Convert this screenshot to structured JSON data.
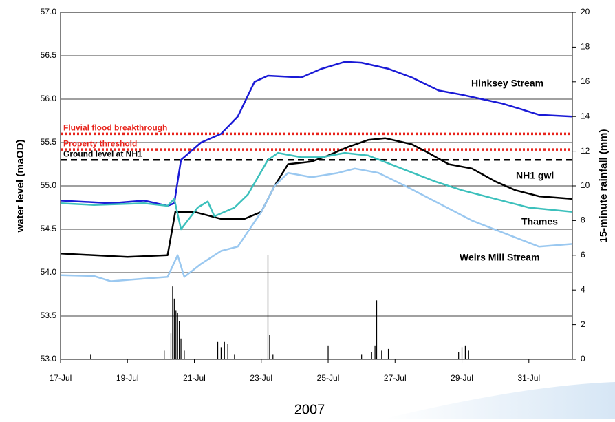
{
  "chart_data": {
    "type": "line",
    "ylabel": "water level (maOD)",
    "y2label": "15-minute rainfall (mm)",
    "xlabel": "2007",
    "xlim": [
      17,
      32.3
    ],
    "xticks": [
      {
        "value": 17,
        "label": "17-Jul"
      },
      {
        "value": 19,
        "label": "19-Jul"
      },
      {
        "value": 21,
        "label": "21-Jul"
      },
      {
        "value": 23,
        "label": "23-Jul"
      },
      {
        "value": 25,
        "label": "25-Jul"
      },
      {
        "value": 27,
        "label": "27-Jul"
      },
      {
        "value": 29,
        "label": "29-Jul"
      },
      {
        "value": 31,
        "label": "31-Jul"
      }
    ],
    "ylim": [
      53,
      57
    ],
    "yticks": [
      {
        "value": 53,
        "label": "53.0"
      },
      {
        "value": 53.5,
        "label": "53.5"
      },
      {
        "value": 54,
        "label": "54.0"
      },
      {
        "value": 54.5,
        "label": "54.5"
      },
      {
        "value": 55,
        "label": "55.0"
      },
      {
        "value": 55.5,
        "label": "55.5"
      },
      {
        "value": 56,
        "label": "56.0"
      },
      {
        "value": 56.5,
        "label": "56.5"
      },
      {
        "value": 57,
        "label": "57.0"
      }
    ],
    "y2lim": [
      0,
      20
    ],
    "y2ticks": [
      0,
      2,
      4,
      6,
      8,
      10,
      12,
      14,
      16,
      18,
      20
    ],
    "grid": true,
    "reference_lines": [
      {
        "label": "Fluvial flood breakthrough",
        "value": 55.6,
        "color": "#e8241c",
        "style": "dotted"
      },
      {
        "label": "Property threshold",
        "value": 55.42,
        "color": "#e8241c",
        "style": "dotted"
      },
      {
        "label": "Ground level at NH1",
        "value": 55.3,
        "color": "#000000",
        "style": "dashed"
      }
    ],
    "series": [
      {
        "name": "Hinksey Stream",
        "color": "#1a1ad6",
        "x": [
          17,
          18.5,
          19.5,
          20.2,
          20.4,
          20.6,
          21.2,
          21.8,
          22.3,
          22.8,
          23.2,
          24.2,
          24.8,
          25.5,
          26,
          26.8,
          27.5,
          28.3,
          29,
          29.6,
          30.2,
          30.8,
          31.3,
          32.3
        ],
        "values": [
          54.83,
          54.8,
          54.83,
          54.77,
          54.8,
          55.3,
          55.5,
          55.6,
          55.8,
          56.2,
          56.27,
          56.25,
          56.35,
          56.43,
          56.42,
          56.35,
          56.25,
          56.1,
          56.05,
          56,
          55.95,
          55.88,
          55.82,
          55.8
        ]
      },
      {
        "name": "NH1 gwl",
        "color": "#000000",
        "x": [
          17,
          18,
          19,
          20.2,
          20.43,
          21,
          21.8,
          22.5,
          23,
          23.4,
          23.8,
          24.5,
          25,
          25.6,
          26.2,
          26.7,
          27.5,
          28,
          28.6,
          29.3,
          30,
          30.6,
          31.3,
          32.3
        ],
        "values": [
          54.22,
          54.2,
          54.18,
          54.2,
          54.7,
          54.7,
          54.62,
          54.62,
          54.7,
          55,
          55.25,
          55.28,
          55.35,
          55.45,
          55.53,
          55.55,
          55.48,
          55.38,
          55.25,
          55.2,
          55.05,
          54.95,
          54.88,
          54.85
        ]
      },
      {
        "name": "Thames",
        "color": "#3cc0bc",
        "x": [
          17,
          18,
          19.5,
          20.2,
          20.4,
          20.6,
          21.1,
          21.4,
          21.6,
          22.2,
          22.6,
          23.2,
          23.5,
          24.2,
          24.8,
          25.5,
          26.2,
          27.2,
          28.2,
          29,
          30,
          31,
          32.3
        ],
        "values": [
          54.8,
          54.78,
          54.8,
          54.77,
          54.85,
          54.5,
          54.75,
          54.82,
          54.65,
          54.75,
          54.9,
          55.3,
          55.38,
          55.33,
          55.33,
          55.38,
          55.35,
          55.2,
          55.05,
          54.95,
          54.85,
          54.75,
          54.7
        ]
      },
      {
        "name": "Weirs Mill Stream",
        "color": "#9ac8f0",
        "x": [
          17,
          18,
          18.5,
          19.5,
          20.2,
          20.5,
          20.7,
          21.2,
          21.8,
          22.3,
          23,
          23.4,
          23.8,
          24.5,
          25.3,
          25.8,
          26.5,
          27.3,
          28.3,
          29.3,
          30.3,
          31.3,
          32.3
        ],
        "values": [
          53.97,
          53.96,
          53.9,
          53.93,
          53.95,
          54.2,
          53.95,
          54.1,
          54.25,
          54.3,
          54.7,
          55,
          55.15,
          55.1,
          55.15,
          55.2,
          55.15,
          55,
          54.8,
          54.6,
          54.45,
          54.3,
          54.33
        ]
      },
      {
        "name": "15-minute rainfall",
        "type": "bar",
        "axis": "y2",
        "color": "#000000",
        "x": [
          17.9,
          20.1,
          20.3,
          20.35,
          20.4,
          20.45,
          20.5,
          20.55,
          20.6,
          20.7,
          21.7,
          21.8,
          21.9,
          22,
          22.2,
          23.2,
          23.25,
          23.35,
          25,
          26,
          26.3,
          26.4,
          26.45,
          26.6,
          26.8,
          28.9,
          29,
          29.1,
          29.2
        ],
        "values": [
          0.3,
          0.5,
          1.5,
          4.2,
          3.5,
          2.8,
          2.7,
          2.2,
          1.2,
          0.5,
          1,
          0.7,
          1,
          0.9,
          0.3,
          6,
          1.4,
          0.3,
          0.8,
          0.3,
          0.4,
          0.8,
          3.4,
          0.5,
          0.6,
          0.4,
          0.7,
          0.8,
          0.5
        ]
      }
    ]
  }
}
